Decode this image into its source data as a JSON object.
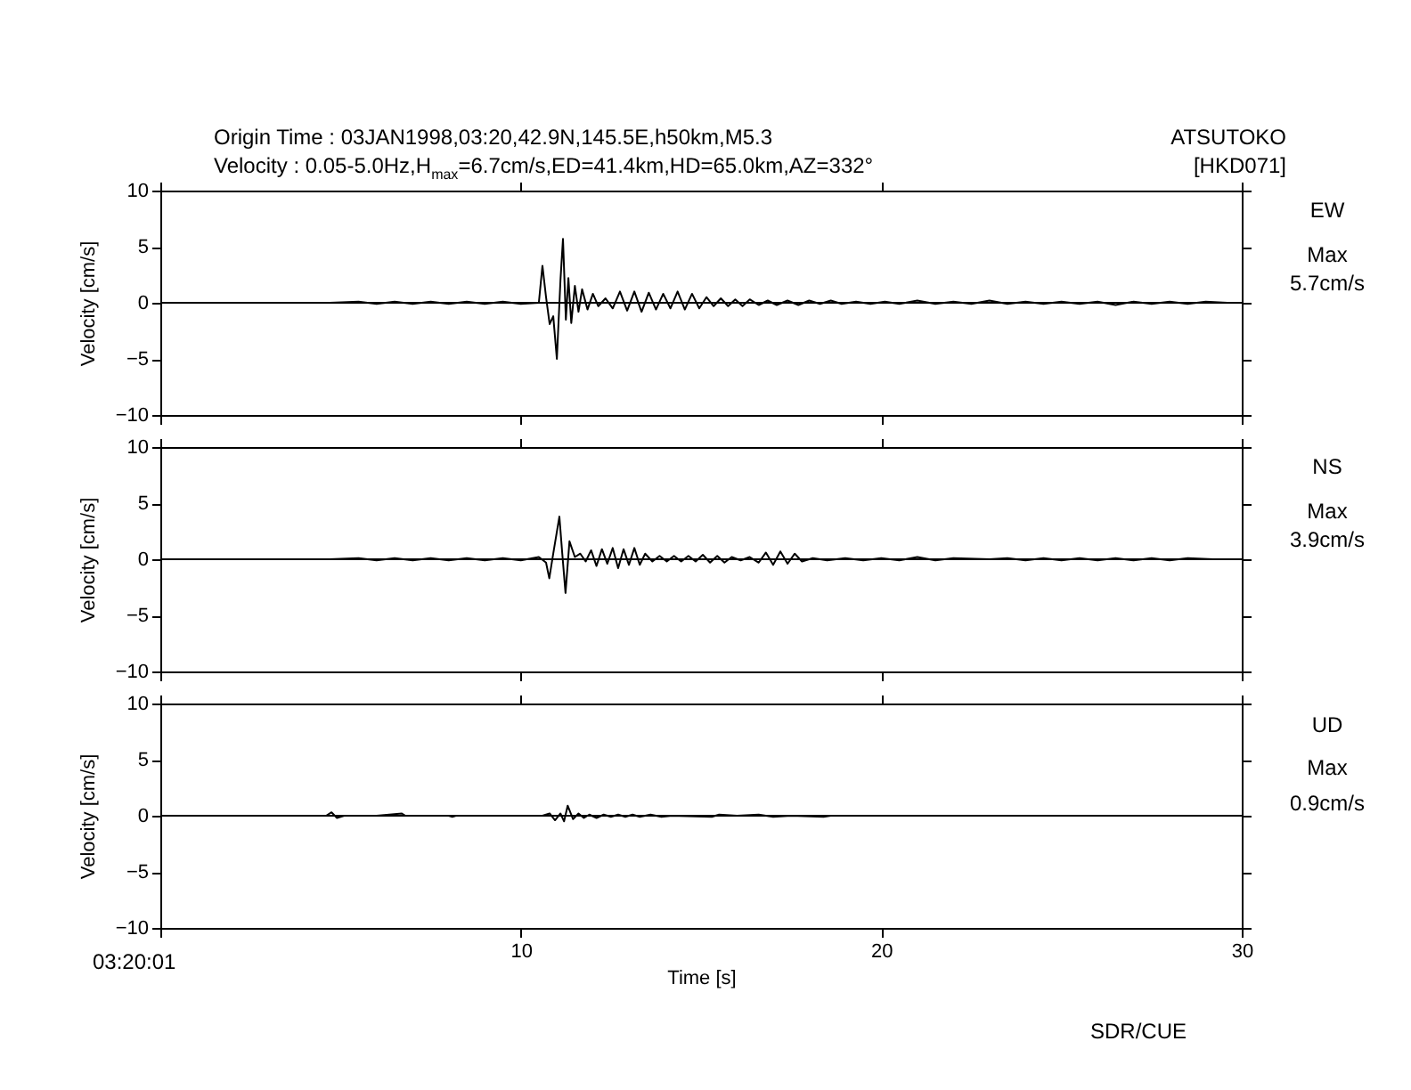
{
  "chart_data": [
    {
      "type": "line",
      "title": "Origin Time : 03JAN1998,03:20,42.9N,145.5E,h50km,M5.3",
      "subtitle": "Velocity : 0.05-5.0Hz,H$_{max}$=6.7cm/s,ED=41.4km,HD=65.0km,AZ=332°",
      "ylabel": "Velocity [cm/s]",
      "annotations": [
        "ATSUTOKO",
        "[HKD071]",
        "EW",
        "Max",
        "5.7cm/s"
      ],
      "xlim": [
        0,
        30
      ],
      "xticks": [
        0,
        10,
        20,
        30
      ],
      "ylim": [
        -10,
        10
      ],
      "yticks": [
        -10,
        -5,
        0,
        5,
        10
      ],
      "tick_labels": "y",
      "grid": false,
      "ref_lines": [
        {
          "axis": "y",
          "value": 0
        }
      ],
      "series": [
        {
          "color": "#000000",
          "x": [
            4.7,
            5.5,
            6.0,
            6.5,
            7.0,
            7.5,
            8.0,
            8.5,
            9.0,
            9.5,
            10.0,
            10.5,
            10.6,
            10.7,
            10.8,
            10.9,
            11.0,
            11.1,
            11.17,
            11.25,
            11.32,
            11.4,
            11.5,
            11.6,
            11.7,
            11.85,
            12.0,
            12.15,
            12.35,
            12.55,
            12.75,
            12.95,
            13.15,
            13.35,
            13.55,
            13.75,
            13.95,
            14.15,
            14.35,
            14.55,
            14.75,
            14.95,
            15.15,
            15.35,
            15.55,
            15.75,
            15.95,
            16.15,
            16.35,
            16.6,
            16.85,
            17.1,
            17.4,
            17.7,
            18.0,
            18.3,
            18.6,
            18.9,
            19.3,
            19.7,
            20.1,
            20.5,
            21.0,
            21.5,
            22.0,
            22.5,
            23.0,
            23.5,
            24.0,
            24.5,
            25.0,
            25.5,
            26.0,
            26.5,
            27.0,
            27.5,
            28.0,
            28.5,
            29.0,
            29.6
          ],
          "values": [
            0,
            0.1,
            -0.1,
            0.1,
            -0.1,
            0.1,
            -0.1,
            0.1,
            -0.1,
            0.1,
            -0.1,
            0,
            3.3,
            0.5,
            -1.9,
            -1.2,
            -5.0,
            2.0,
            5.7,
            -1.5,
            2.2,
            -1.8,
            1.5,
            -0.8,
            1.2,
            -0.6,
            0.8,
            -0.3,
            0.4,
            -0.5,
            1.0,
            -0.7,
            1.0,
            -0.8,
            0.9,
            -0.6,
            0.8,
            -0.5,
            1.0,
            -0.6,
            0.8,
            -0.5,
            0.5,
            -0.3,
            0.4,
            -0.3,
            0.3,
            -0.3,
            0.3,
            -0.2,
            0.2,
            -0.2,
            0.2,
            -0.2,
            0.2,
            -0.1,
            0.2,
            -0.1,
            0.1,
            -0.1,
            0.1,
            -0.1,
            0.2,
            -0.1,
            0.1,
            -0.1,
            0.2,
            -0.1,
            0.1,
            -0.1,
            0.1,
            -0.1,
            0.1,
            -0.2,
            0.1,
            -0.1,
            0.1,
            -0.1,
            0.1,
            0
          ]
        }
      ]
    },
    {
      "type": "line",
      "ylabel": "Velocity [cm/s]",
      "annotations": [
        "NS",
        "Max",
        "3.9cm/s"
      ],
      "xlim": [
        0,
        30
      ],
      "xticks": [
        0,
        10,
        20,
        30
      ],
      "ylim": [
        -10,
        10
      ],
      "yticks": [
        -10,
        -5,
        0,
        5,
        10
      ],
      "tick_labels": "y",
      "grid": false,
      "ref_lines": [
        {
          "axis": "y",
          "value": 0
        }
      ],
      "series": [
        {
          "color": "#000000",
          "x": [
            4.7,
            5.5,
            6.0,
            6.5,
            7.0,
            7.5,
            8.0,
            8.5,
            9.0,
            9.5,
            10.0,
            10.5,
            10.7,
            10.79,
            10.9,
            11.07,
            11.15,
            11.24,
            11.35,
            11.5,
            11.65,
            11.8,
            11.95,
            12.1,
            12.25,
            12.4,
            12.55,
            12.7,
            12.85,
            13.0,
            13.15,
            13.3,
            13.45,
            13.65,
            13.85,
            14.05,
            14.25,
            14.45,
            14.65,
            14.85,
            15.05,
            15.25,
            15.45,
            15.65,
            15.85,
            16.1,
            16.35,
            16.6,
            16.8,
            17.0,
            17.2,
            17.4,
            17.6,
            17.8,
            18.1,
            18.5,
            19.0,
            19.5,
            20.0,
            20.5,
            21.0,
            21.5,
            22.0,
            23.0,
            23.5,
            24.0,
            24.5,
            25.0,
            25.5,
            26.0,
            26.5,
            27.0,
            27.5,
            28.0,
            28.5,
            29.2
          ],
          "values": [
            0,
            0.1,
            -0.1,
            0.1,
            -0.1,
            0.1,
            -0.1,
            0.1,
            -0.1,
            0.1,
            -0.1,
            0.2,
            -0.3,
            -1.7,
            0.5,
            3.8,
            0.5,
            -3.0,
            1.6,
            0.2,
            0.5,
            -0.2,
            0.8,
            -0.6,
            0.9,
            -0.4,
            1.0,
            -0.8,
            0.9,
            -0.5,
            1.0,
            -0.5,
            0.5,
            -0.2,
            0.3,
            -0.2,
            0.3,
            -0.2,
            0.3,
            -0.2,
            0.4,
            -0.3,
            0.3,
            -0.3,
            0.2,
            -0.1,
            0.2,
            -0.3,
            0.6,
            -0.5,
            0.7,
            -0.4,
            0.5,
            -0.2,
            0.1,
            -0.1,
            0.1,
            -0.1,
            0.1,
            -0.1,
            0.2,
            -0.1,
            0.1,
            0,
            0.1,
            -0.1,
            0.1,
            -0.1,
            0.1,
            -0.1,
            0.1,
            -0.1,
            0.1,
            -0.1,
            0.1,
            0
          ]
        }
      ]
    },
    {
      "type": "line",
      "xlabel": "Time [s]",
      "ylabel": "Velocity [cm/s]",
      "annotations": [
        "UD",
        "Max",
        "0.9cm/s",
        "03:20:01",
        "SDR/CUE"
      ],
      "xlim": [
        0,
        30
      ],
      "xticks": [
        {
          "value": 0,
          "label": null
        },
        10,
        20,
        30
      ],
      "ylim": [
        -10,
        10
      ],
      "yticks": [
        -10,
        -5,
        0,
        5,
        10
      ],
      "grid": false,
      "ref_lines": [
        {
          "axis": "y",
          "value": 0
        }
      ],
      "series": [
        {
          "color": "#000000",
          "x": [
            4.6,
            4.75,
            4.9,
            5.1,
            6.0,
            6.7,
            6.8,
            8.0,
            8.1,
            8.2,
            10.6,
            10.8,
            10.95,
            11.1,
            11.2,
            11.3,
            11.45,
            11.6,
            11.75,
            11.9,
            12.1,
            12.3,
            12.5,
            12.7,
            12.9,
            13.1,
            13.3,
            13.6,
            13.9,
            14.2,
            15.3,
            15.5,
            16.0,
            16.6,
            17.0,
            17.5,
            18.4,
            18.6
          ],
          "values": [
            0,
            0.3,
            -0.2,
            0,
            0,
            0.2,
            0,
            0,
            -0.1,
            0,
            0,
            0.2,
            -0.4,
            0.2,
            -0.5,
            0.9,
            -0.3,
            0.2,
            -0.2,
            0.1,
            -0.2,
            0.1,
            -0.1,
            0.1,
            -0.1,
            0.1,
            -0.1,
            0.1,
            -0.1,
            0,
            -0.1,
            0.1,
            0,
            0.1,
            -0.1,
            0,
            -0.1,
            0
          ]
        }
      ]
    }
  ]
}
